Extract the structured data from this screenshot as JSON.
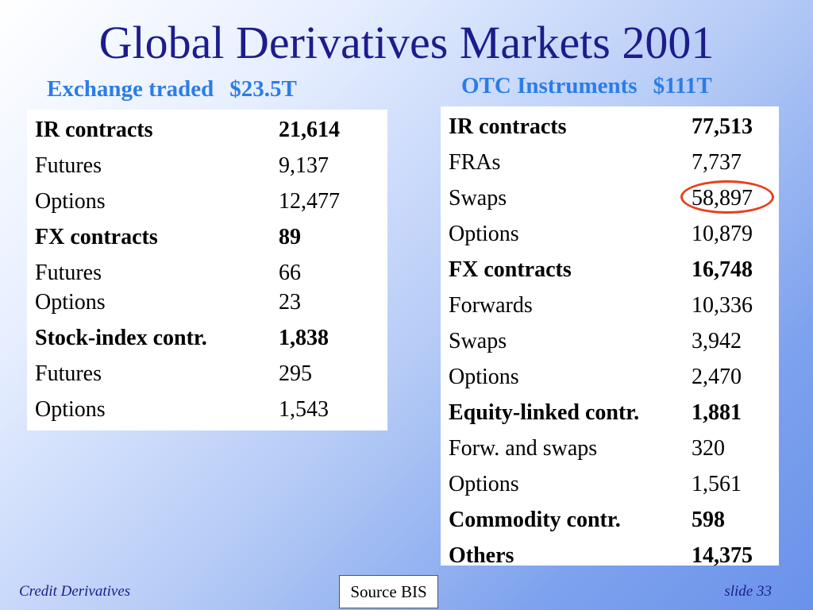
{
  "title": "Global Derivatives Markets 2001",
  "exchange": {
    "heading": "Exchange traded",
    "amount": "$23.5T",
    "rows": [
      {
        "label": "IR contracts",
        "value": "21,614",
        "bold": true
      },
      {
        "label": "Futures",
        "value": "9,137",
        "bold": false
      },
      {
        "label": "Options",
        "value": "12,477",
        "bold": false
      },
      {
        "label": "FX contracts",
        "value": "89",
        "bold": true
      },
      {
        "label": "Futures",
        "value": "66",
        "bold": false
      },
      {
        "label": "Options",
        "value": "23",
        "bold": false
      },
      {
        "label": "Stock-index contr.",
        "value": "1,838",
        "bold": true
      },
      {
        "label": "Futures",
        "value": "295",
        "bold": false
      },
      {
        "label": "Options",
        "value": "1,543",
        "bold": false
      }
    ]
  },
  "otc": {
    "heading": "OTC Instruments",
    "amount": "$111T",
    "rows": [
      {
        "label": "IR contracts",
        "value": "77,513",
        "bold": true
      },
      {
        "label": "FRAs",
        "value": "7,737",
        "bold": false
      },
      {
        "label": "Swaps",
        "value": "58,897",
        "bold": false
      },
      {
        "label": "Options",
        "value": "10,879",
        "bold": false
      },
      {
        "label": "FX contracts",
        "value": "16,748",
        "bold": true
      },
      {
        "label": "Forwards",
        "value": "10,336",
        "bold": false
      },
      {
        "label": "Swaps",
        "value": "3,942",
        "bold": false
      },
      {
        "label": "Options",
        "value": "2,470",
        "bold": false
      },
      {
        "label": "Equity-linked contr.",
        "value": "1,881",
        "bold": true
      },
      {
        "label": "Forw. and swaps",
        "value": "320",
        "bold": false
      },
      {
        "label": "Options",
        "value": "1,561",
        "bold": false
      },
      {
        "label": "Commodity contr.",
        "value": "598",
        "bold": true
      },
      {
        "label": "Others",
        "value": "14,375",
        "bold": true
      }
    ]
  },
  "footer": {
    "left": "Credit Derivatives",
    "source": "Source BIS",
    "slide": "slide 33"
  },
  "colors": {
    "title": "#1c1c8c",
    "subheading": "#2b7de6",
    "highlight": "#e8401c"
  }
}
